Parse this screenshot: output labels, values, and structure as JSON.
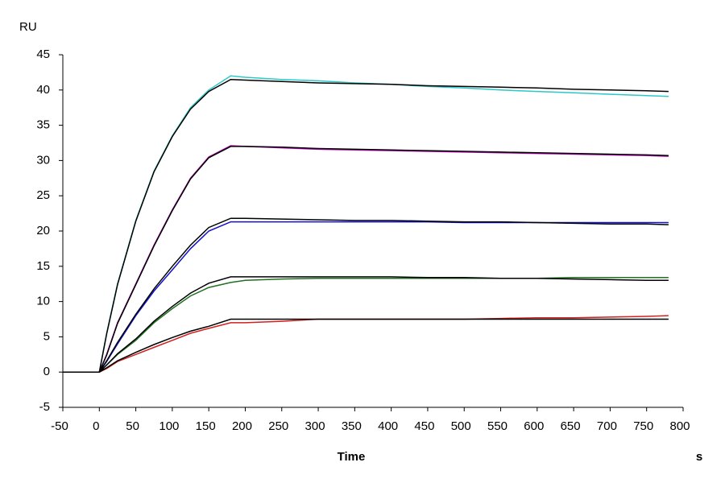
{
  "chart_data": {
    "type": "line",
    "y_label": "RU",
    "x_label": "Time",
    "x_unit": "s",
    "x": [
      -50,
      -25,
      0,
      10,
      25,
      50,
      75,
      100,
      125,
      150,
      180,
      200,
      250,
      300,
      350,
      400,
      450,
      500,
      550,
      600,
      650,
      700,
      750,
      780
    ],
    "series": [
      {
        "color": "#2cc8c8",
        "values": [
          0,
          0,
          0,
          5.5,
          12.5,
          21.5,
          28.5,
          33.5,
          37.5,
          40,
          42,
          41.8,
          41.5,
          41.3,
          41,
          40.8,
          40.5,
          40.3,
          40,
          39.8,
          39.6,
          39.4,
          39.2,
          39.1
        ]
      },
      {
        "color": "#000000",
        "values": [
          0,
          0,
          0,
          5.4,
          12.4,
          21.4,
          28.4,
          33.4,
          37.3,
          39.8,
          41.5,
          41.4,
          41.2,
          41,
          40.9,
          40.8,
          40.6,
          40.5,
          40.4,
          40.3,
          40.1,
          40,
          39.9,
          39.8
        ]
      },
      {
        "color": "#c000c0",
        "values": [
          0,
          0,
          0,
          2.5,
          7,
          12.5,
          18,
          23,
          27.5,
          30.5,
          32.1,
          32,
          31.8,
          31.6,
          31.5,
          31.4,
          31.3,
          31.2,
          31.1,
          31,
          30.9,
          30.8,
          30.7,
          30.6
        ]
      },
      {
        "color": "#000000",
        "values": [
          0,
          0,
          0,
          2.4,
          6.9,
          12.4,
          17.9,
          22.9,
          27.4,
          30.4,
          32,
          32,
          31.9,
          31.7,
          31.6,
          31.5,
          31.4,
          31.3,
          31.2,
          31.1,
          31,
          30.9,
          30.8,
          30.7
        ]
      },
      {
        "color": "#1010d0",
        "values": [
          0,
          0,
          0,
          1.5,
          4,
          8,
          11.5,
          14.5,
          17.5,
          20,
          21.3,
          21.3,
          21.3,
          21.3,
          21.3,
          21.3,
          21.3,
          21.2,
          21.2,
          21.2,
          21.2,
          21.2,
          21.2,
          21.2
        ]
      },
      {
        "color": "#000000",
        "values": [
          0,
          0,
          0,
          1.6,
          4.2,
          8.2,
          11.8,
          15,
          18,
          20.5,
          21.8,
          21.8,
          21.7,
          21.6,
          21.5,
          21.5,
          21.4,
          21.3,
          21.3,
          21.2,
          21.1,
          21,
          21,
          20.9
        ]
      },
      {
        "color": "#207020",
        "values": [
          0,
          0,
          0,
          1,
          2.5,
          4.5,
          7,
          9,
          10.8,
          12,
          12.7,
          13,
          13.2,
          13.3,
          13.3,
          13.3,
          13.3,
          13.3,
          13.3,
          13.3,
          13.4,
          13.4,
          13.4,
          13.4
        ]
      },
      {
        "color": "#000000",
        "values": [
          0,
          0,
          0,
          1,
          2.6,
          4.7,
          7.2,
          9.3,
          11.2,
          12.6,
          13.5,
          13.5,
          13.5,
          13.5,
          13.5,
          13.5,
          13.4,
          13.4,
          13.3,
          13.3,
          13.2,
          13.1,
          13,
          13
        ]
      },
      {
        "color": "#d02020",
        "values": [
          0,
          0,
          0,
          0.5,
          1.5,
          2.5,
          3.5,
          4.5,
          5.5,
          6.2,
          7,
          7,
          7.2,
          7.5,
          7.5,
          7.5,
          7.5,
          7.5,
          7.6,
          7.7,
          7.7,
          7.8,
          7.9,
          8
        ]
      },
      {
        "color": "#000000",
        "values": [
          0,
          0,
          0,
          0.6,
          1.6,
          2.8,
          3.9,
          4.9,
          5.8,
          6.5,
          7.5,
          7.5,
          7.5,
          7.5,
          7.5,
          7.5,
          7.5,
          7.5,
          7.5,
          7.5,
          7.5,
          7.5,
          7.5,
          7.5
        ]
      }
    ],
    "xlim": [
      -50,
      800
    ],
    "xticks": [
      -50,
      0,
      50,
      100,
      150,
      200,
      250,
      300,
      350,
      400,
      450,
      500,
      550,
      600,
      650,
      700,
      750,
      800
    ],
    "ylim": [
      -5,
      45
    ],
    "yticks": [
      -5,
      0,
      5,
      10,
      15,
      20,
      25,
      30,
      35,
      40,
      45
    ],
    "grid": false
  }
}
